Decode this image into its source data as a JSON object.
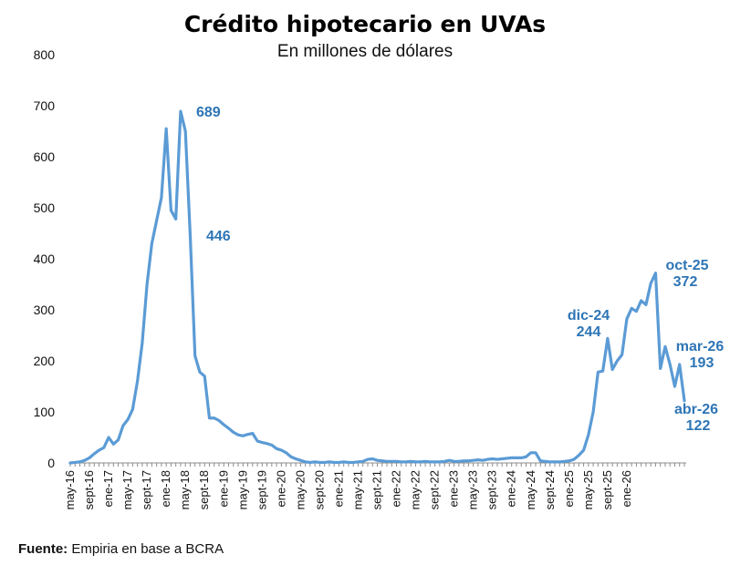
{
  "chart_data": {
    "type": "line",
    "title": "Crédito hipotecario en UVAs",
    "subtitle": "En millones de dólares",
    "ylim": [
      0,
      800
    ],
    "yticks": [
      0,
      100,
      200,
      300,
      400,
      500,
      600,
      700,
      800
    ],
    "grid": false,
    "line_color": "#5b9bd5",
    "label_color": "#2e75b6",
    "x_tick_labels": [
      "may-16",
      "sept-16",
      "ene-17",
      "may-17",
      "sept-17",
      "ene-18",
      "may-18",
      "sept-18",
      "ene-19",
      "may-19",
      "sept-19",
      "ene-20",
      "may-20",
      "sept-20",
      "ene-21",
      "may-21",
      "sept-21",
      "ene-22",
      "may-22",
      "sept-22",
      "ene-23",
      "may-23",
      "sept-23",
      "ene-24",
      "may-24",
      "sept-24",
      "ene-25",
      "may-25",
      "sept-25",
      "ene-26"
    ],
    "x_start": "may-16",
    "series": [
      {
        "values": [
          0,
          1,
          2,
          5,
          10,
          18,
          25,
          30,
          50,
          37,
          45,
          73,
          85,
          105,
          160,
          235,
          350,
          430,
          475,
          520,
          655,
          495,
          478,
          689,
          650,
          446,
          210,
          178,
          170,
          88,
          88,
          83,
          75,
          68,
          60,
          55,
          53,
          56,
          58,
          43,
          40,
          38,
          35,
          28,
          25,
          20,
          12,
          8,
          5,
          2,
          1,
          2,
          1,
          1,
          2,
          1,
          1,
          2,
          1,
          1,
          2,
          3,
          7,
          8,
          5,
          4,
          3,
          3,
          3,
          2,
          2,
          3,
          2,
          2,
          3,
          2,
          2,
          2,
          3,
          5,
          3,
          3,
          4,
          4,
          5,
          6,
          5,
          7,
          8,
          7,
          8,
          9,
          10,
          10,
          10,
          12,
          20,
          20,
          4,
          3,
          2,
          2,
          2,
          3,
          4,
          7,
          15,
          25,
          55,
          100,
          178,
          180,
          244,
          183,
          200,
          212,
          282,
          303,
          297,
          318,
          310,
          352,
          372,
          185,
          228,
          193,
          150,
          193,
          122
        ]
      }
    ],
    "annotations": [
      {
        "point": "ene-18",
        "value": "689"
      },
      {
        "point": "mar-18",
        "value": "446"
      },
      {
        "point": "dic-24",
        "label": "dic-24",
        "value": "244"
      },
      {
        "point": "oct-25",
        "label": "oct-25",
        "value": "372"
      },
      {
        "point": "mar-26",
        "label": "mar-26",
        "value": "193"
      },
      {
        "point": "abr-26",
        "label": "abr-26",
        "value": "122"
      }
    ]
  },
  "source": {
    "label": "Fuente:",
    "text": " Empiria en base a BCRA"
  }
}
